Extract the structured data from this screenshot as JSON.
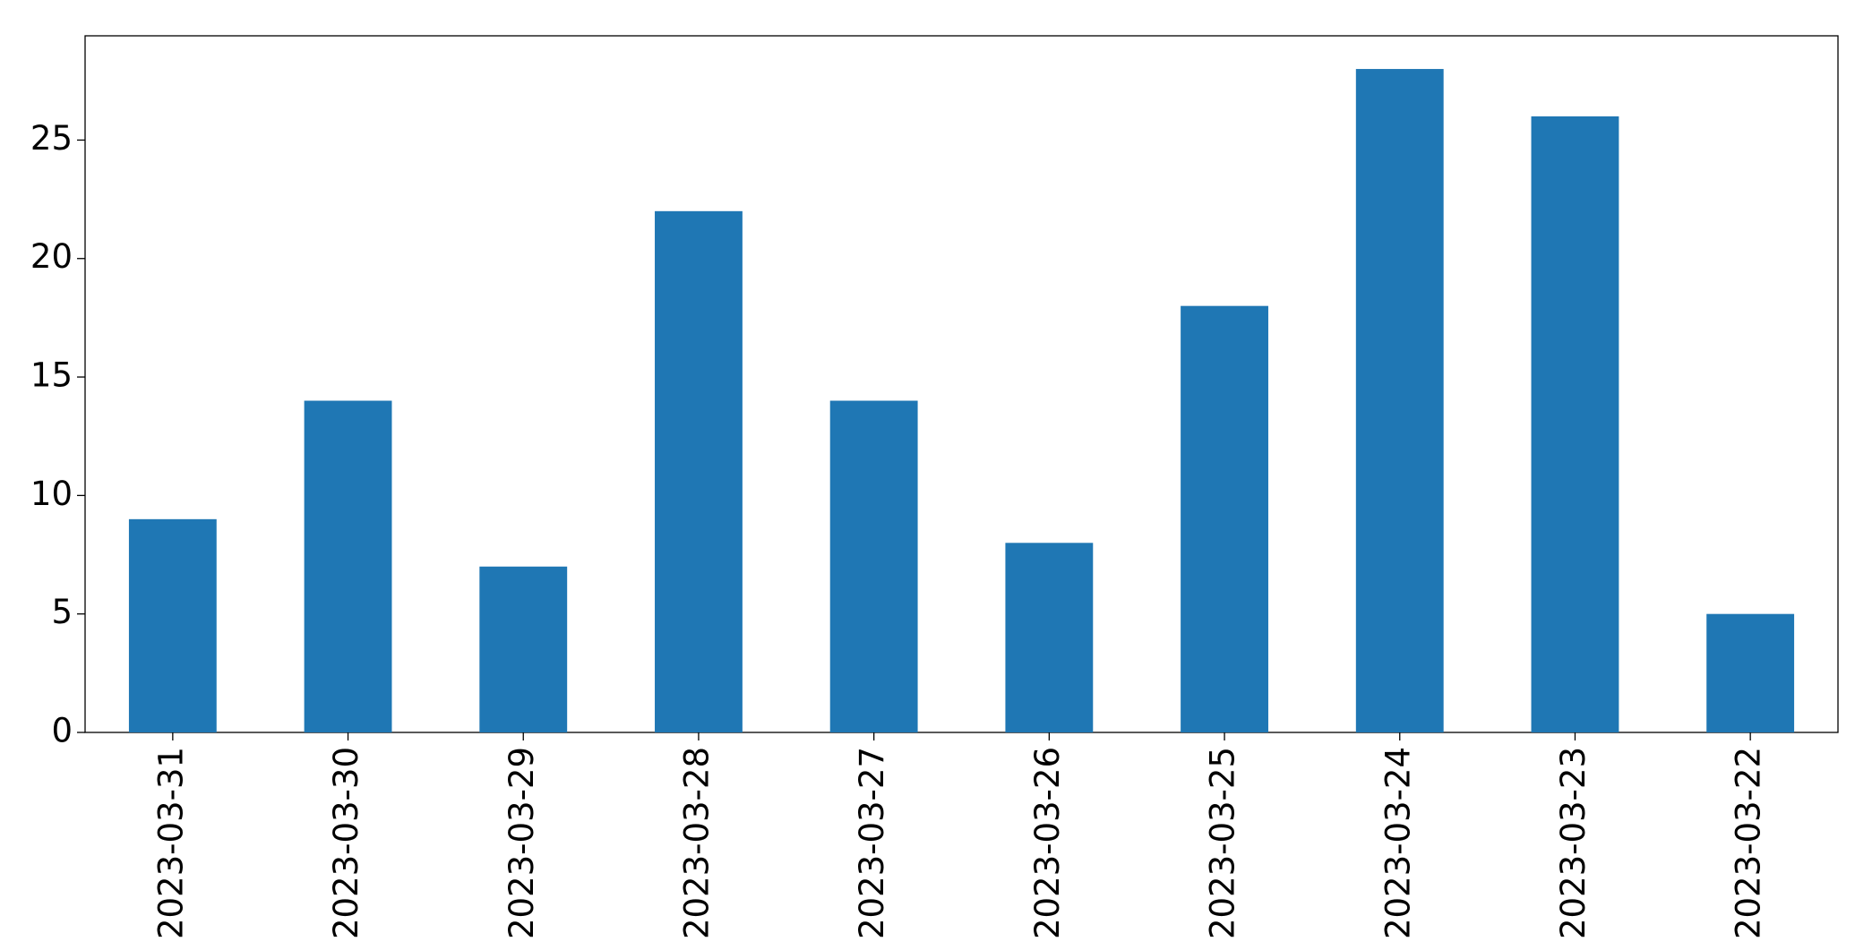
{
  "chart_data": {
    "type": "bar",
    "categories": [
      "2023-03-31",
      "2023-03-30",
      "2023-03-29",
      "2023-03-28",
      "2023-03-27",
      "2023-03-26",
      "2023-03-25",
      "2023-03-24",
      "2023-03-23",
      "2023-03-22"
    ],
    "values": [
      9,
      14,
      7,
      22,
      14,
      8,
      18,
      28,
      26,
      5
    ],
    "color": "#1f77b4",
    "ylim": [
      0,
      29.4
    ],
    "yticks": [
      0,
      5,
      10,
      15,
      20,
      25
    ],
    "grid": false
  }
}
